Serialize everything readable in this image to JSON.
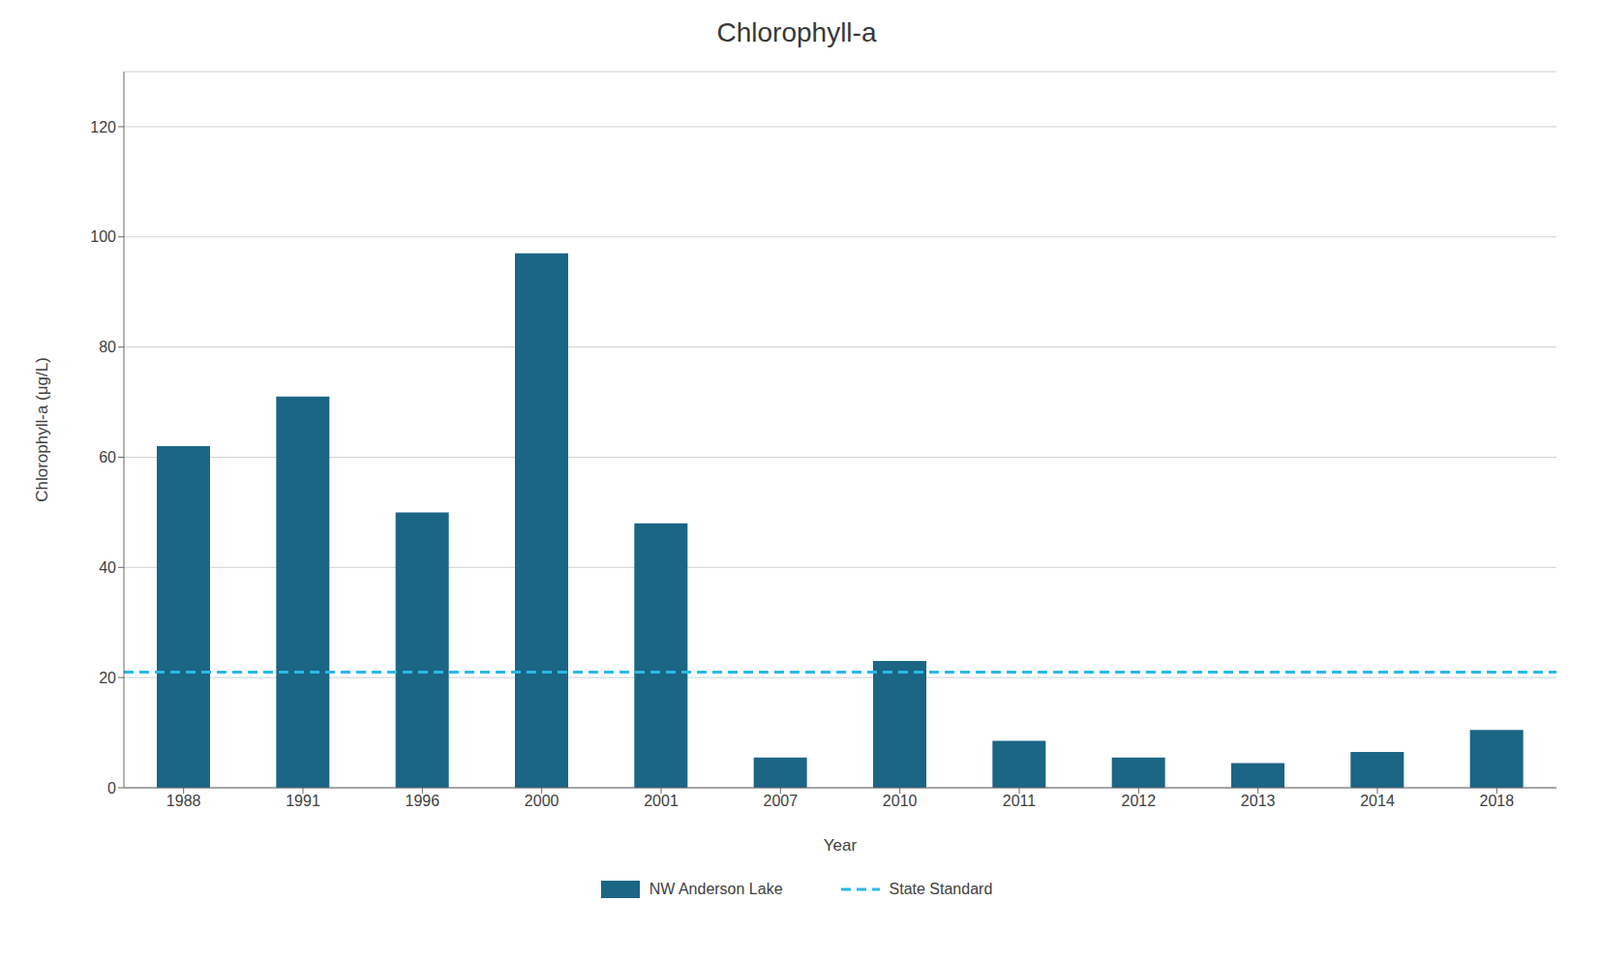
{
  "chart_data": {
    "type": "bar",
    "title": "Chlorophyll-a",
    "xlabel": "Year",
    "ylabel": "Chlorophyll-a (μg/L)",
    "categories": [
      "1988",
      "1991",
      "1996",
      "2000",
      "2001",
      "2007",
      "2010",
      "2011",
      "2012",
      "2013",
      "2014",
      "2018"
    ],
    "series": [
      {
        "name": "NW Anderson Lake",
        "color": "#1b6585",
        "values": [
          62,
          71,
          50,
          97,
          48,
          5.5,
          23,
          8.5,
          5.5,
          4.5,
          6.5,
          10.5
        ]
      }
    ],
    "reference_line": {
      "name": "State Standard",
      "value": 21,
      "color": "#29b9e8",
      "line_style": "dashed"
    },
    "ylim": [
      0,
      130
    ],
    "yticks": [
      0,
      20,
      40,
      60,
      80,
      100,
      120
    ],
    "grid": true,
    "legend": "bottom"
  }
}
